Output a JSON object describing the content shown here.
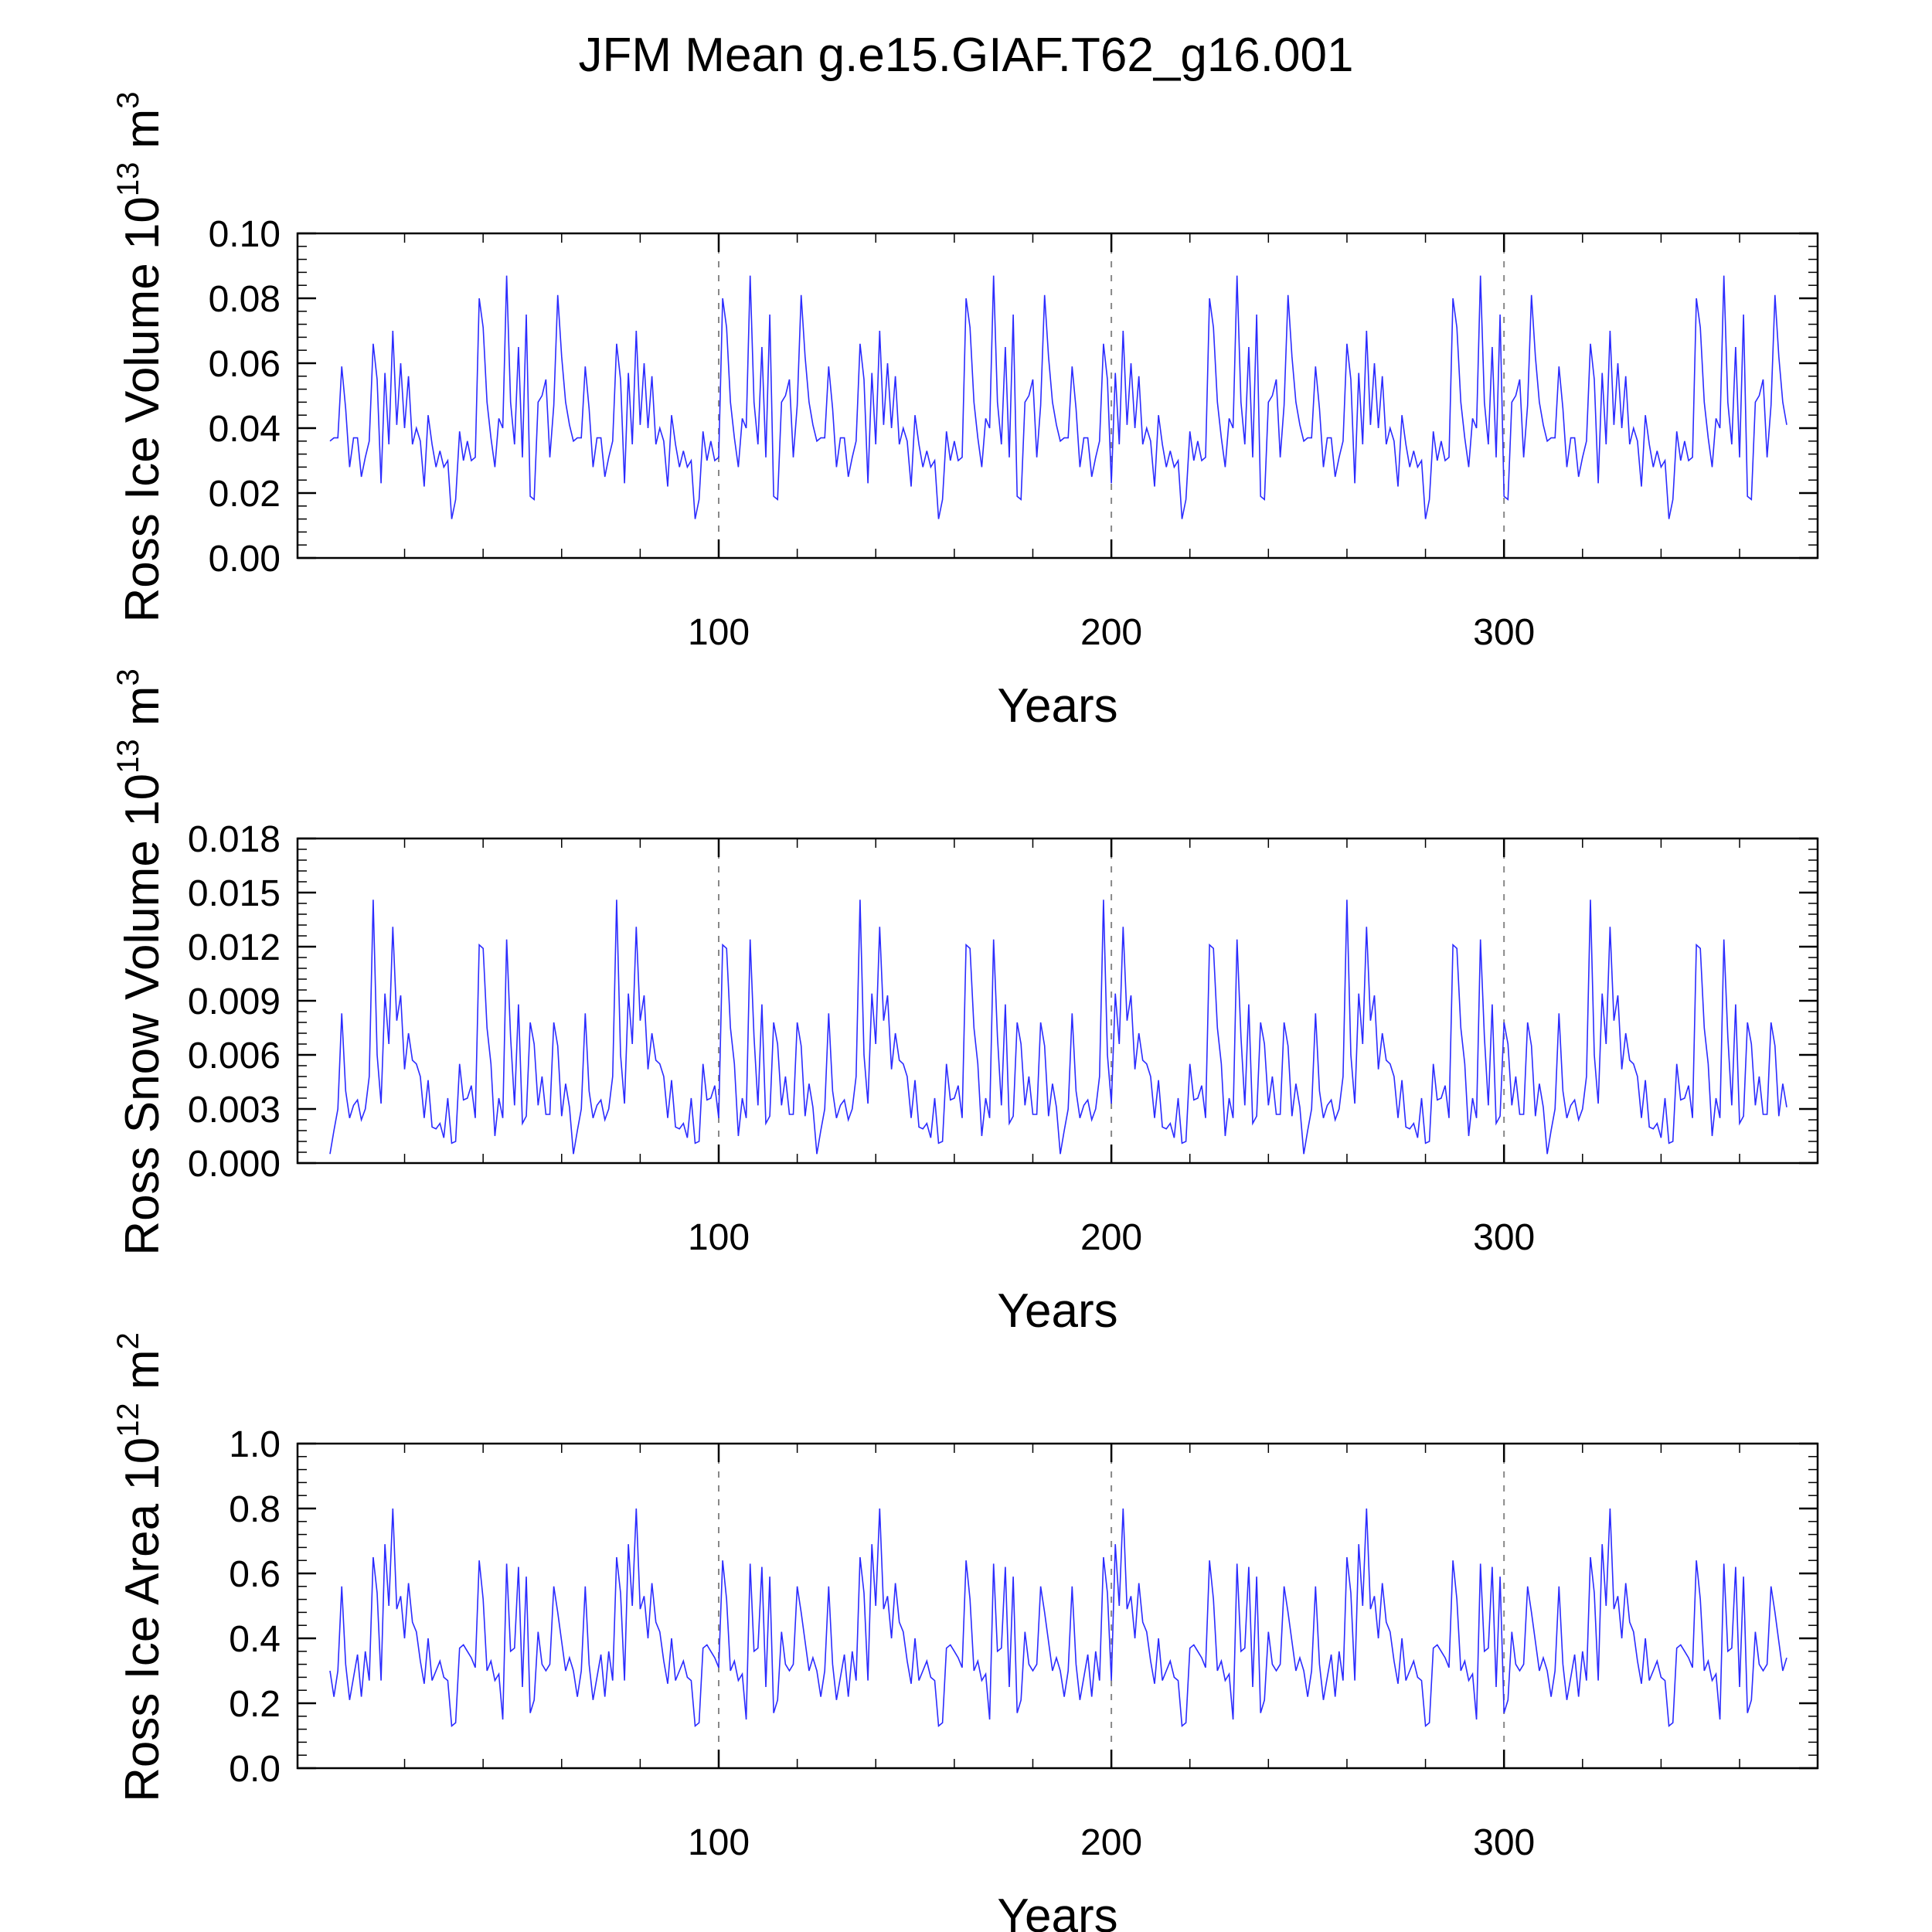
{
  "title": "JFM Mean g.e15.GIAF.T62_g16.001",
  "colors": {
    "series": "#2b2bff",
    "axis": "#000000",
    "grid": "#888888"
  },
  "chart_data": [
    {
      "type": "line",
      "ylabel": "Ross Ice Volume 10",
      "ylabel_exp": "13",
      "ylabel_unit": " m",
      "ylabel_unit_exp": "3",
      "xlabel": "Years",
      "xlim": [
        1,
        372
      ],
      "ylim": [
        0,
        0.1
      ],
      "xticks": [
        100,
        200,
        300
      ],
      "xtick_labels": [
        "100",
        "200",
        "300"
      ],
      "yticks": [
        0,
        0.02,
        0.04,
        0.06,
        0.08,
        0.1
      ],
      "ytick_labels": [
        "0.00",
        "0.02",
        "0.04",
        "0.06",
        "0.08",
        "0.10"
      ],
      "period": 62,
      "base_pattern": [
        0.036,
        0.037,
        0.037,
        0.059,
        0.046,
        0.028,
        0.037,
        0.037,
        0.025,
        0.031,
        0.036,
        0.066,
        0.055,
        0.023,
        0.057,
        0.035,
        0.07,
        0.041,
        0.06,
        0.04,
        0.056,
        0.035,
        0.04,
        0.036,
        0.022,
        0.044,
        0.035,
        0.028,
        0.033,
        0.028,
        0.03,
        0.012,
        0.018,
        0.039,
        0.03,
        0.036,
        0.03,
        0.031,
        0.08,
        0.071,
        0.048,
        0.037,
        0.028,
        0.043,
        0.04,
        0.087,
        0.048,
        0.035,
        0.065,
        0.031,
        0.075,
        0.019,
        0.018,
        0.048,
        0.05,
        0.055,
        0.031,
        0.047,
        0.081,
        0.062,
        0.048,
        0.041
      ],
      "values_note": "series repeats the 62-year forcing cycle over 372 years"
    },
    {
      "type": "line",
      "ylabel": "Ross Snow Volume 10",
      "ylabel_exp": "13",
      "ylabel_unit": " m",
      "ylabel_unit_exp": "3",
      "xlabel": "Years",
      "xlim": [
        1,
        372
      ],
      "ylim": [
        0,
        0.018
      ],
      "xticks": [
        100,
        200,
        300
      ],
      "xtick_labels": [
        "100",
        "200",
        "300"
      ],
      "yticks": [
        0,
        0.003,
        0.006,
        0.009,
        0.012,
        0.015,
        0.018
      ],
      "ytick_labels": [
        "0.000",
        "0.003",
        "0.006",
        "0.009",
        "0.012",
        "0.015",
        "0.018"
      ],
      "period": 62,
      "base_pattern": [
        0.0005,
        0.0018,
        0.003,
        0.0083,
        0.004,
        0.0025,
        0.0032,
        0.0035,
        0.0024,
        0.003,
        0.0048,
        0.0146,
        0.006,
        0.0033,
        0.0094,
        0.0066,
        0.0131,
        0.0079,
        0.0093,
        0.0052,
        0.0072,
        0.0057,
        0.0055,
        0.0048,
        0.0025,
        0.0046,
        0.002,
        0.0019,
        0.0022,
        0.0014,
        0.0036,
        0.0011,
        0.0012,
        0.0055,
        0.0035,
        0.0036,
        0.0043,
        0.0025,
        0.0121,
        0.0119,
        0.0075,
        0.0055,
        0.0015,
        0.0036,
        0.0025,
        0.0124,
        0.007,
        0.0032,
        0.0088,
        0.0022,
        0.0026,
        0.0078,
        0.0066,
        0.0032,
        0.0048,
        0.0027,
        0.0027,
        0.0078,
        0.0065,
        0.0026,
        0.0044,
        0.0031
      ],
      "values_note": "series repeats the 62-year forcing cycle over 372 years"
    },
    {
      "type": "line",
      "ylabel": "Ross Ice Area 10",
      "ylabel_exp": "12",
      "ylabel_unit": " m",
      "ylabel_unit_exp": "2",
      "xlabel": "Years",
      "xlim": [
        1,
        372
      ],
      "ylim": [
        0,
        1.0
      ],
      "xticks": [
        100,
        200,
        300
      ],
      "xtick_labels": [
        "100",
        "200",
        "300"
      ],
      "yticks": [
        0,
        0.2,
        0.4,
        0.6,
        0.8,
        1.0
      ],
      "ytick_labels": [
        "0.0",
        "0.2",
        "0.4",
        "0.6",
        "0.8",
        "1.0"
      ],
      "period": 62,
      "base_pattern": [
        0.3,
        0.22,
        0.3,
        0.56,
        0.32,
        0.21,
        0.28,
        0.35,
        0.22,
        0.36,
        0.27,
        0.65,
        0.54,
        0.27,
        0.69,
        0.5,
        0.8,
        0.49,
        0.53,
        0.4,
        0.57,
        0.45,
        0.42,
        0.33,
        0.26,
        0.4,
        0.27,
        0.3,
        0.33,
        0.28,
        0.27,
        0.13,
        0.14,
        0.37,
        0.38,
        0.36,
        0.34,
        0.31,
        0.64,
        0.52,
        0.3,
        0.33,
        0.27,
        0.29,
        0.15,
        0.63,
        0.36,
        0.37,
        0.62,
        0.25,
        0.59,
        0.17,
        0.21,
        0.42,
        0.32,
        0.3,
        0.32,
        0.56,
        0.48,
        0.39,
        0.3,
        0.34
      ],
      "values_note": "series repeats the 62-year forcing cycle over 372 years"
    }
  ]
}
